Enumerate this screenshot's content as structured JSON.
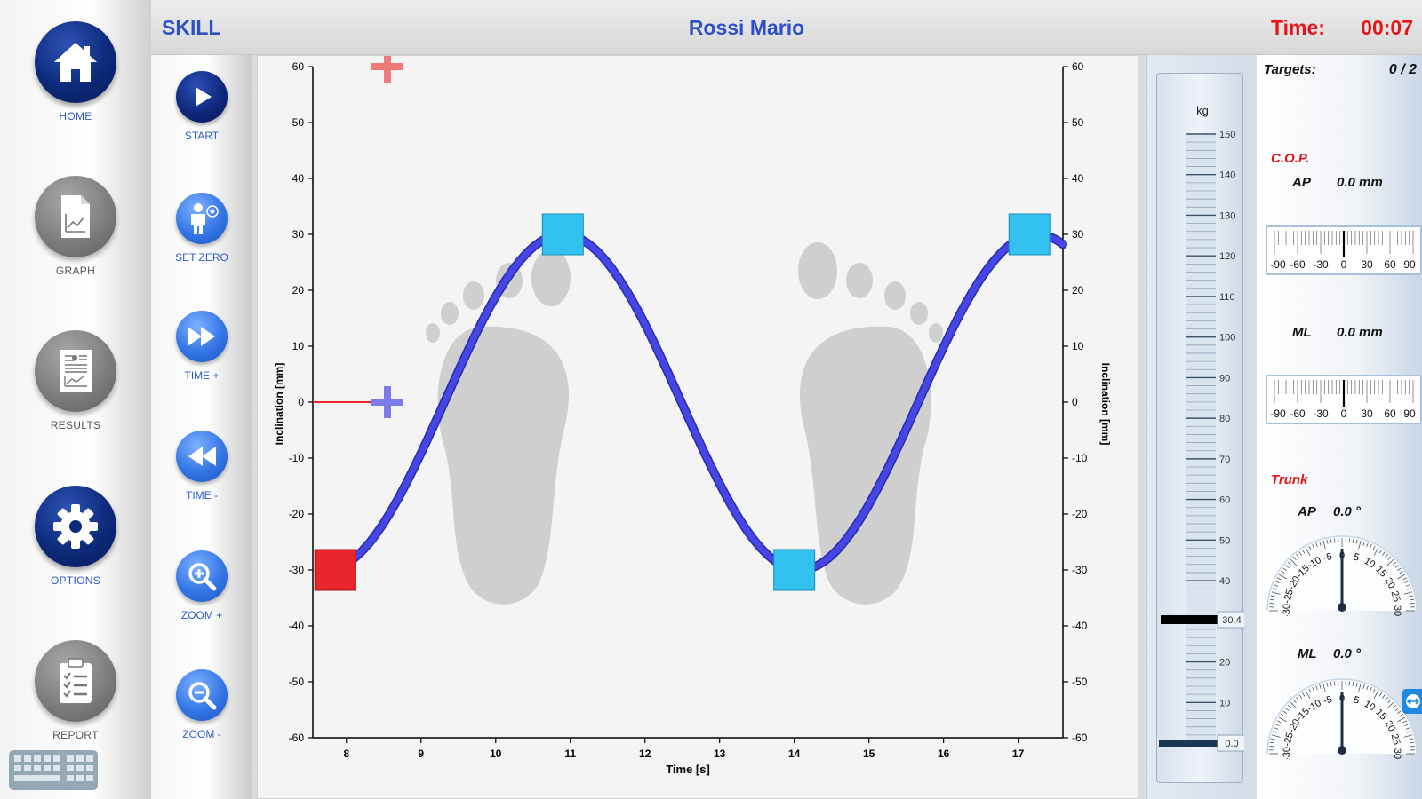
{
  "nav": {
    "home": "HOME",
    "graph": "GRAPH",
    "results": "RESULTS",
    "options": "OPTIONS",
    "report": "REPORT"
  },
  "header": {
    "mode": "SKILL",
    "patient": "Rossi Mario",
    "time_label": "Time:",
    "time_value": "00:07"
  },
  "controls": {
    "start": "START",
    "set_zero": "SET ZERO",
    "time_plus": "TIME +",
    "time_minus": "TIME -",
    "zoom_plus": "ZOOM +",
    "zoom_minus": "ZOOM -"
  },
  "chart_data": {
    "type": "line",
    "xlabel": "Time [s]",
    "ylabel_left": "Inclination [mm]",
    "ylabel_right": "Inclination [mm]",
    "xlim": [
      7.55,
      17.6
    ],
    "ylim": [
      -60,
      60
    ],
    "x_ticks": [
      8,
      9,
      10,
      11,
      12,
      13,
      14,
      15,
      16,
      17
    ],
    "y_ticks": [
      60,
      50,
      40,
      30,
      20,
      10,
      0,
      -10,
      -20,
      -30,
      -40,
      -50,
      -60
    ],
    "series": [
      {
        "amplitude": 30,
        "period": 6.35,
        "peak_time": 10.9,
        "x_start": 7.8,
        "x_end": 17.6,
        "color": "#4646e6"
      }
    ],
    "targets": [
      {
        "x": 7.85,
        "y": -30,
        "color": "#e8252a",
        "state": "active"
      },
      {
        "x": 10.9,
        "y": 30,
        "color": "#33c2f0",
        "state": "pending"
      },
      {
        "x": 14.0,
        "y": -30,
        "color": "#33c2f0",
        "state": "pending"
      },
      {
        "x": 17.15,
        "y": 30,
        "color": "#33c2f0",
        "state": "pending"
      }
    ],
    "cursors": [
      {
        "x": 8.55,
        "y": 0,
        "color": "#7b7bea"
      },
      {
        "x": 8.55,
        "y": 60,
        "color": "#f07a7a"
      }
    ],
    "trail": {
      "x0": 7.55,
      "x1": 8.45,
      "y": 0,
      "color": "#e8252a"
    }
  },
  "scale": {
    "unit": "kg",
    "ticks": [
      150,
      140,
      130,
      120,
      110,
      100,
      90,
      80,
      70,
      60,
      50,
      40,
      30,
      20,
      10
    ],
    "max": 150,
    "value": 30.4,
    "value_label": "30.4",
    "zero_label": "0.0"
  },
  "info": {
    "targets_label": "Targets:",
    "targets_value": "0  / 2",
    "cop_title": "C.O.P.",
    "cop_ap_label": "AP",
    "cop_ap_value": "0.0 mm",
    "cop_ml_label": "ML",
    "cop_ml_value": "0.0 mm",
    "ruler_ticks": [
      "-90",
      "-60",
      "-30",
      "0",
      "30",
      "60",
      "90"
    ],
    "trunk_title": "Trunk",
    "trunk_ap_label": "AP",
    "trunk_ap_value": "0.0 °",
    "trunk_ml_label": "ML",
    "trunk_ml_value": "0.0 °",
    "gauge_ticks": [
      "-30",
      "-25",
      "-20",
      "-15",
      "-10",
      "-5",
      "0",
      "5",
      "10",
      "15",
      "20",
      "25",
      "30"
    ]
  }
}
